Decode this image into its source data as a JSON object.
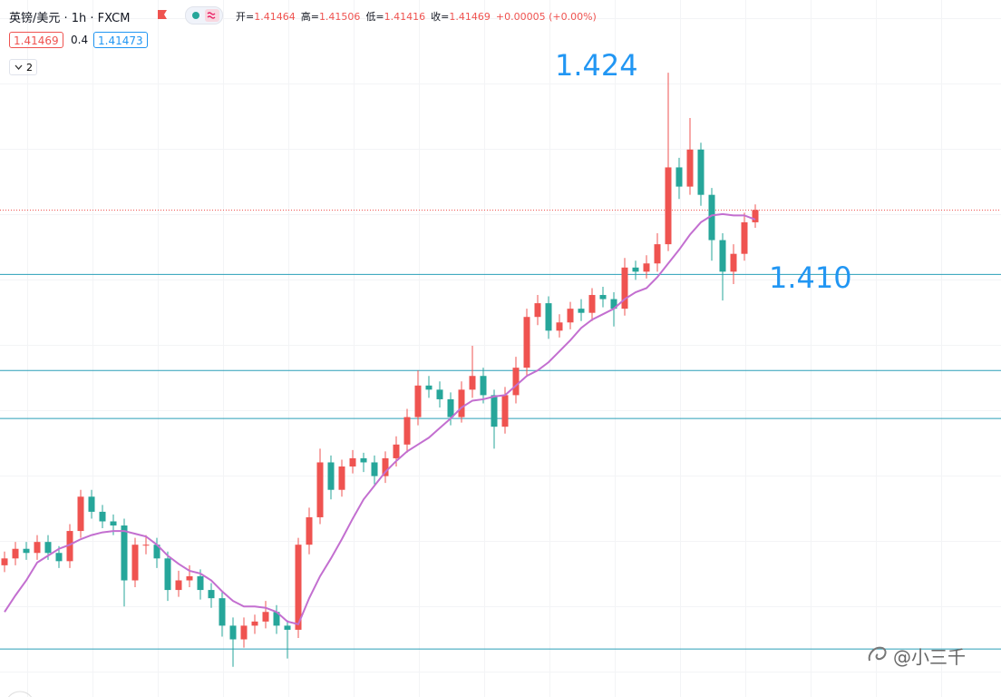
{
  "header": {
    "title": "英镑/美元 · 1h · FXCM",
    "ohlc_labels": [
      "开=",
      "高=",
      "低=",
      "收="
    ],
    "ohlc_values": [
      "1.41464",
      "1.41506",
      "1.41416",
      "1.41469"
    ],
    "change": "+0.00005 (+0.00%)",
    "bid": "1.41469",
    "spread": "0.4",
    "ask": "1.41473",
    "indicators": "2"
  },
  "watermark": "@小三千",
  "chart_data": {
    "type": "candlestick",
    "annotations": [
      "1.424",
      "1.410"
    ],
    "ylim": [
      1.3792,
      1.43
    ],
    "up_color": "#ef5350",
    "down_color": "#26a69a",
    "open": [
      1.3888,
      1.3893,
      1.39,
      1.3897,
      1.3905,
      1.3897,
      1.3891,
      1.3913,
      1.3938,
      1.3927,
      1.392,
      1.3917,
      1.3877,
      1.3903,
      1.3903,
      1.3893,
      1.387,
      1.3877,
      1.388,
      1.387,
      1.3864,
      1.3844,
      1.3834,
      1.3844,
      1.3847,
      1.3854,
      1.3844,
      1.3841,
      1.3903,
      1.3923,
      1.3963,
      1.3943,
      1.396,
      1.3966,
      1.3963,
      1.3953,
      1.3966,
      1.3976,
      1.3996,
      1.4019,
      1.4016,
      1.4009,
      1.3996,
      1.4016,
      1.4026,
      1.4012,
      1.3989,
      1.4012,
      1.4032,
      1.4069,
      1.4079,
      1.4059,
      1.4065,
      1.4075,
      1.4072,
      1.4085,
      1.4082,
      1.4075,
      1.4105,
      1.4102,
      1.4108,
      1.4122,
      1.4178,
      1.4164,
      1.4191,
      1.4158,
      1.4125,
      1.4102,
      1.4115,
      1.4138
    ],
    "high": [
      1.3898,
      1.3905,
      1.3905,
      1.391,
      1.391,
      1.3902,
      1.3918,
      1.3943,
      1.3943,
      1.3932,
      1.3925,
      1.3922,
      1.3908,
      1.391,
      1.3908,
      1.3898,
      1.3884,
      1.3888,
      1.3885,
      1.3875,
      1.3869,
      1.385,
      1.385,
      1.3852,
      1.3862,
      1.3859,
      1.3848,
      1.3908,
      1.393,
      1.3973,
      1.3968,
      1.3965,
      1.3972,
      1.397,
      1.3968,
      1.3971,
      1.3982,
      1.4002,
      1.403,
      1.4026,
      1.4022,
      1.4014,
      1.4022,
      1.4048,
      1.4032,
      1.4016,
      1.4018,
      1.404,
      1.4075,
      1.4085,
      1.4084,
      1.4071,
      1.408,
      1.4082,
      1.409,
      1.4091,
      1.4087,
      1.4112,
      1.411,
      1.4114,
      1.413,
      1.4247,
      1.4185,
      1.4214,
      1.4196,
      1.4163,
      1.413,
      1.4122,
      1.4145,
      1.4151
    ],
    "low": [
      1.3883,
      1.3888,
      1.3892,
      1.3892,
      1.3892,
      1.3886,
      1.3886,
      1.3908,
      1.3922,
      1.3915,
      1.391,
      1.3858,
      1.3872,
      1.3896,
      1.3886,
      1.3862,
      1.3865,
      1.3872,
      1.3863,
      1.3857,
      1.3836,
      1.3814,
      1.3828,
      1.3838,
      1.3842,
      1.3838,
      1.382,
      1.3835,
      1.3896,
      1.3918,
      1.3936,
      1.3938,
      1.3955,
      1.3956,
      1.3947,
      1.3948,
      1.396,
      1.397,
      1.399,
      1.401,
      1.4003,
      1.399,
      1.3992,
      1.401,
      1.4006,
      1.3973,
      1.3984,
      1.4006,
      1.4026,
      1.4063,
      1.4053,
      1.4054,
      1.406,
      1.4066,
      1.4066,
      1.4076,
      1.4062,
      1.407,
      1.4096,
      1.4097,
      1.4102,
      1.4117,
      1.4155,
      1.4158,
      1.415,
      1.411,
      1.4081,
      1.4093,
      1.411,
      1.4134
    ],
    "close": [
      1.3893,
      1.39,
      1.3897,
      1.3905,
      1.3897,
      1.3891,
      1.3913,
      1.3938,
      1.3927,
      1.392,
      1.3917,
      1.3877,
      1.3903,
      1.3903,
      1.3893,
      1.387,
      1.3877,
      1.388,
      1.387,
      1.3864,
      1.3844,
      1.3834,
      1.3844,
      1.3847,
      1.3854,
      1.3844,
      1.3841,
      1.3903,
      1.3923,
      1.3963,
      1.3943,
      1.396,
      1.3966,
      1.3963,
      1.3953,
      1.3966,
      1.3976,
      1.3996,
      1.4019,
      1.4016,
      1.4009,
      1.3996,
      1.4016,
      1.4026,
      1.4012,
      1.3989,
      1.4012,
      1.4032,
      1.4069,
      1.4079,
      1.4059,
      1.4065,
      1.4075,
      1.4072,
      1.4085,
      1.4082,
      1.4075,
      1.4105,
      1.4102,
      1.4108,
      1.4122,
      1.4178,
      1.4164,
      1.4191,
      1.4158,
      1.4125,
      1.4102,
      1.4115,
      1.4138,
      1.4147
    ],
    "line_series": [
      {
        "color": "#c36fd0",
        "values": [
          1.3854,
          1.3866,
          1.3877,
          1.389,
          1.3895,
          1.39,
          1.3903,
          1.3907,
          1.391,
          1.3912,
          1.3913,
          1.3913,
          1.3911,
          1.3909,
          1.3903,
          1.3895,
          1.3889,
          1.3884,
          1.3882,
          1.3877,
          1.3869,
          1.3862,
          1.3858,
          1.3858,
          1.3857,
          1.3854,
          1.3847,
          1.3845,
          1.3864,
          1.388,
          1.3893,
          1.3907,
          1.3922,
          1.3936,
          1.3946,
          1.3956,
          1.3964,
          1.3971,
          1.3976,
          1.3981,
          1.3988,
          1.3995,
          1.4003,
          1.4008,
          1.4009,
          1.4011,
          1.4012,
          1.4019,
          1.4026,
          1.403,
          1.4036,
          1.4044,
          1.4052,
          1.4061,
          1.4067,
          1.4071,
          1.4075,
          1.4082,
          1.4087,
          1.409,
          1.4098,
          1.4108,
          1.4118,
          1.4129,
          1.4138,
          1.4143,
          1.4144,
          1.4143,
          1.4143,
          1.414
        ]
      }
    ],
    "hlines": [
      1.41,
      1.403,
      1.3995,
      1.3827
    ],
    "hline_color": "#2a9fb8",
    "last_price": 1.41469,
    "last_price_color": "#ef5350"
  }
}
